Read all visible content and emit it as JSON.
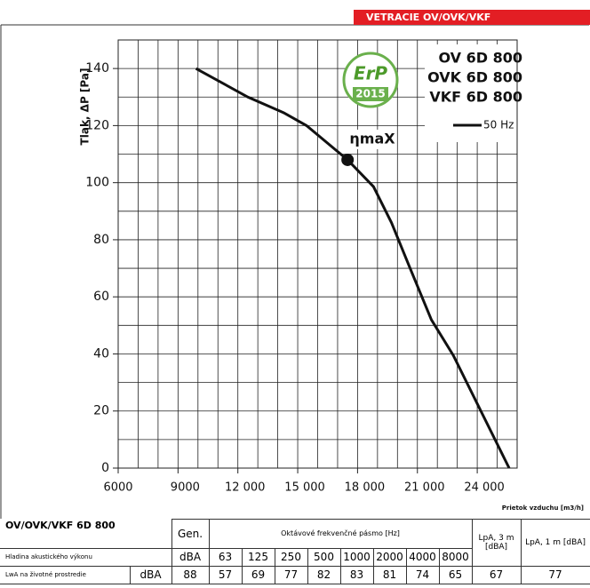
{
  "chart_data": {
    "type": "line",
    "banner": "VETRACIE OV/OVK/VKF",
    "ylabel": "Tlak, ΔP [Pa]",
    "xlabel": "Prietok vzduchu [m3/h]",
    "models": [
      "OV 6D 800",
      "OVK 6D 800",
      "VKF 6D 800"
    ],
    "badge": [
      "ErP",
      "2015"
    ],
    "x": [
      9900,
      12500,
      14300,
      15440,
      17500,
      18800,
      19700,
      20600,
      21700,
      22800,
      25600
    ],
    "series": [
      {
        "name": "50 Hz",
        "color": "#111111",
        "values": [
          140,
          130,
          124.5,
          120,
          108,
          98.6,
          86,
          70.6,
          52,
          39.5,
          0
        ]
      }
    ],
    "annotations": [
      {
        "text": "ηmaX",
        "x": 17500,
        "y": 108
      }
    ],
    "xlim": [
      6000,
      26000
    ],
    "xticks": [
      6000,
      9000,
      {
        "value": 12000,
        "label": "12 000"
      },
      {
        "value": 15000,
        "label": "15 000"
      },
      {
        "value": 18000,
        "label": "18 000"
      },
      {
        "value": 21000,
        "label": "21 000"
      },
      {
        "value": 24000,
        "label": "24 000"
      }
    ],
    "ylim": [
      0,
      150
    ],
    "yticks": [
      0,
      20,
      40,
      60,
      80,
      100,
      120,
      140
    ],
    "grid": true
  },
  "table": {
    "title": "OV/OVK/VKF 6D 800",
    "gen_header": "Gen.",
    "band_header": "Oktávové frekvenčné pásmo [Hz]",
    "lpa3_header": "LpA, 3 m [dBA]",
    "lpa1_header": "LpA, 1 m [dBA]",
    "row2_label": "Hladina akustického výkonu",
    "row2_unit": "dBA",
    "bands": [
      "63",
      "125",
      "250",
      "500",
      "1000",
      "2000",
      "4000",
      "8000"
    ],
    "row3_label": "LwA na životné prostredie",
    "row3_unit": "dBA",
    "gen_value": "88",
    "values": [
      "57",
      "69",
      "77",
      "82",
      "83",
      "81",
      "74",
      "65"
    ],
    "lpa3": "67",
    "lpa1": "77"
  }
}
